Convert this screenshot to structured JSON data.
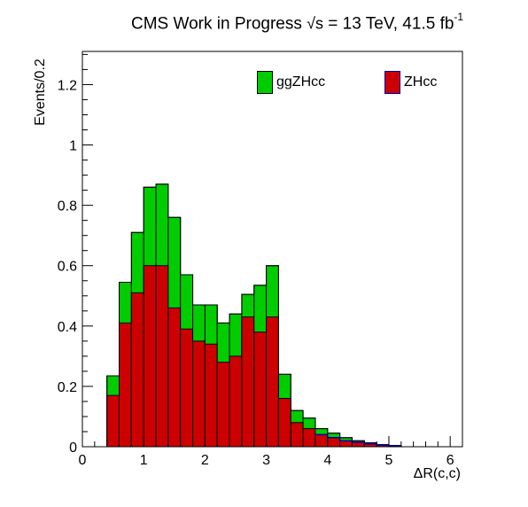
{
  "header": {
    "title_prefix": "CMS Work in Progress",
    "sqrt_symbol": "√s",
    "title_energy": " = 13 TeV, 41.5 fb",
    "title_sup": "-1"
  },
  "chart_data": {
    "type": "stacked-histogram",
    "xlabel": "ΔR(c,c)",
    "ylabel": "Events/0.2",
    "xlim": [
      0,
      6.2
    ],
    "ylim": [
      0,
      1.31
    ],
    "xticks": [
      "0",
      "1",
      "2",
      "3",
      "4",
      "5",
      "6"
    ],
    "yticks": [
      "0",
      "0.2",
      "0.4",
      "0.6",
      "0.8",
      "1",
      "1.2"
    ],
    "bin_width": 0.2,
    "bin_edges_start": 0.4,
    "series": [
      {
        "name": "ZHcc",
        "color": "#cc0000",
        "values": [
          0.17,
          0.41,
          0.51,
          0.6,
          0.6,
          0.46,
          0.39,
          0.35,
          0.34,
          0.28,
          0.3,
          0.43,
          0.38,
          0.43,
          0.16,
          0.08,
          0.06,
          0.04,
          0.03,
          0.02,
          0.015,
          0.01,
          0.005,
          0.003
        ]
      },
      {
        "name": "ggZHcc",
        "color": "#00cc00",
        "values": [
          0.065,
          0.135,
          0.2,
          0.26,
          0.27,
          0.3,
          0.18,
          0.12,
          0.13,
          0.13,
          0.14,
          0.075,
          0.155,
          0.17,
          0.08,
          0.04,
          0.035,
          0.02,
          0.015,
          0.01,
          0.005,
          0.003,
          0.002,
          0.001
        ]
      }
    ],
    "legend_position": "top-right"
  }
}
